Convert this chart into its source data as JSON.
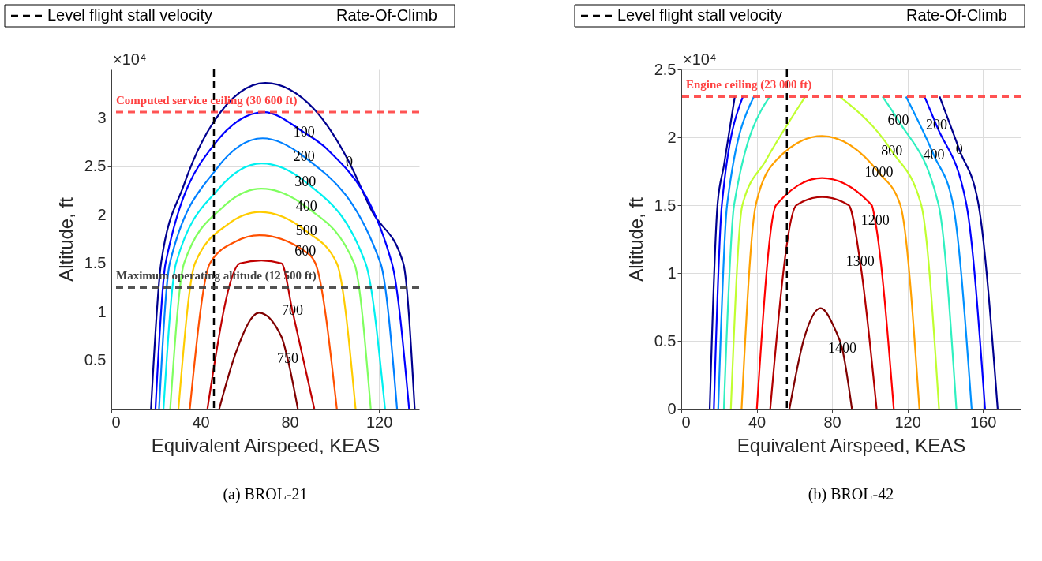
{
  "chart_data": [
    {
      "type": "line",
      "title": "(a) BROL-21",
      "xlabel": "Equivalent Airspeed, KEAS",
      "ylabel": "Altitude, ft",
      "xlim": [
        0,
        138
      ],
      "ylim": [
        0,
        3.5
      ],
      "xticks": [
        0,
        40,
        80,
        120
      ],
      "yticks": [
        0.5,
        1,
        1.5,
        2,
        2.5,
        3
      ],
      "grid": true,
      "legend": "top",
      "line_style": "solid",
      "marker": "none",
      "series": [
        {
          "color": "#00008f",
          "x": [
            17.8,
            22.3,
            32.4,
            45.9,
            69,
            90.9,
            106.7,
            116.8,
            130.9,
            136
          ],
          "values": [
            0,
            1.5,
            2.3,
            2.96,
            3.36,
            3.09,
            2.54,
            2.04,
            1.5,
            0
          ]
        },
        {
          "color": "#0000ff",
          "x": [
            19.8,
            24.3,
            45.9,
            68.4,
            86.4,
            97.1,
            125.8,
            133.5
          ],
          "values": [
            0,
            1.5,
            2.72,
            3.06,
            2.85,
            2.67,
            1.5,
            0
          ]
        },
        {
          "color": "#0080ff",
          "x": [
            21.4,
            26.2,
            47,
            67.8,
            86.4,
            120.7,
            128.1
          ],
          "values": [
            0,
            1.5,
            2.47,
            2.79,
            2.6,
            1.5,
            0
          ]
        },
        {
          "color": "#00f0f0",
          "x": [
            23.4,
            29,
            48.2,
            67.3,
            87,
            114,
            122.7
          ],
          "values": [
            0,
            1.5,
            2.27,
            2.53,
            2.34,
            1.5,
            0
          ]
        },
        {
          "color": "#80ff60",
          "x": [
            26.4,
            32.6,
            50,
            67.3,
            87.5,
            108.9,
            116.3
          ],
          "values": [
            0,
            1.5,
            2.08,
            2.27,
            2.08,
            1.5,
            0
          ]
        },
        {
          "color": "#ffcc00",
          "x": [
            30.1,
            37.5,
            52.1,
            66.7,
            87.5,
            101.1,
            109.5
          ],
          "values": [
            0,
            1.5,
            1.9,
            2.03,
            1.83,
            1.5,
            0
          ]
        },
        {
          "color": "#ff5000",
          "x": [
            35.2,
            44.2,
            55.3,
            66.4,
            87,
            91.5,
            101.1
          ],
          "values": [
            0,
            1.5,
            1.72,
            1.79,
            1.62,
            1.5,
            0
          ]
        },
        {
          "color": "#c00000",
          "x": [
            43.1,
            57.7,
            67.3,
            76.3,
            81.2,
            91
          ],
          "values": [
            0,
            1.5,
            1.53,
            1.5,
            1.01,
            0
          ]
        },
        {
          "color": "#800000",
          "x": [
            48.4,
            56,
            66.2,
            76.3,
            79.1,
            83.6
          ],
          "values": [
            0,
            0.59,
            0.99,
            0.74,
            0.51,
            0
          ]
        }
      ],
      "ref_lines": [
        {
          "axis": "x",
          "value": 46,
          "label": "Level flight stall velocity",
          "color": "#000000",
          "line_style": "dashed"
        },
        {
          "axis": "y",
          "value": 3.06,
          "label": "Computed service ceiling (30 600 ft)",
          "color": "#ff4040",
          "line_style": "dashed"
        },
        {
          "axis": "y",
          "value": 1.25,
          "label": "Maximum operating altitude (12 500 ft)",
          "color": "#404040",
          "line_style": "dashed"
        }
      ],
      "annotations": [
        "×10⁴",
        "Rate-Of-Climb",
        {
          "text": "0",
          "x": 106.7,
          "y": 2.54
        },
        {
          "text": "100",
          "x": 86.4,
          "y": 2.85
        },
        {
          "text": "200",
          "x": 86.4,
          "y": 2.6
        },
        {
          "text": "300",
          "x": 87,
          "y": 2.34
        },
        {
          "text": "400",
          "x": 87.5,
          "y": 2.08
        },
        {
          "text": "500",
          "x": 87.5,
          "y": 1.83
        },
        {
          "text": "600",
          "x": 87,
          "y": 1.62
        },
        {
          "text": "700",
          "x": 81.2,
          "y": 1.01
        },
        {
          "text": "750",
          "x": 79.1,
          "y": 0.51
        }
      ]
    },
    {
      "type": "line",
      "title": "(b) BROL-42",
      "xlabel": "Equivalent Airspeed, KEAS",
      "ylabel": "Altitude, ft",
      "xlim": [
        0,
        180
      ],
      "ylim": [
        0,
        2.5
      ],
      "xticks": [
        0,
        40,
        80,
        120,
        160
      ],
      "yticks": [
        0,
        0.5,
        1,
        1.5,
        2,
        2.5
      ],
      "grid": true,
      "legend": "top",
      "line_style": "solid",
      "marker": "none",
      "series": [
        {
          "color": "#00008f",
          "x": [
            15.1,
            19.2,
            22.6,
            28.4
          ],
          "values": [
            0,
            1.5,
            1.79,
            2.3
          ]
        },
        {
          "color": "#00008f",
          "x": [
            137,
            147.5,
            157.7,
            167.8
          ],
          "values": [
            2.3,
            1.907,
            1.5,
            0
          ]
        },
        {
          "color": "#0000ff",
          "x": [
            17.3,
            21.5,
            32.7
          ],
          "values": [
            0,
            1.5,
            2.3
          ]
        },
        {
          "color": "#0000ff",
          "x": [
            129,
            135.4,
            151.3,
            161.1
          ],
          "values": [
            2.3,
            2.086,
            1.5,
            0
          ]
        },
        {
          "color": "#0090ff",
          "x": [
            19.6,
            24.3,
            38.5
          ],
          "values": [
            0,
            1.5,
            2.3
          ]
        },
        {
          "color": "#0090ff",
          "x": [
            119.2,
            134,
            144.2,
            154
          ],
          "values": [
            2.3,
            1.867,
            1.5,
            0
          ]
        },
        {
          "color": "#30f0c0",
          "x": [
            22.6,
            28,
            46.9
          ],
          "values": [
            0,
            1.5,
            2.3
          ]
        },
        {
          "color": "#30f0c0",
          "x": [
            106.7,
            115.1,
            136.5,
            145.9
          ],
          "values": [
            2.3,
            2.124,
            1.5,
            0
          ]
        },
        {
          "color": "#c0ff30",
          "x": [
            26.3,
            32.4,
            44.9,
            65.8
          ],
          "values": [
            0,
            1.5,
            1.83,
            2.3
          ]
        },
        {
          "color": "#c0ff30",
          "x": [
            84,
            111.7,
            127.3,
            136.7
          ],
          "values": [
            2.3,
            1.898,
            1.5,
            0
          ]
        },
        {
          "color": "#ffa000",
          "x": [
            32,
            39.5,
            50.3,
            74.6,
            104.9,
            116.2,
            126.3
          ],
          "values": [
            0,
            1.5,
            1.83,
            2.01,
            1.738,
            1.5,
            0
          ]
        },
        {
          "color": "#ff0000",
          "x": [
            40.1,
            50.3,
            74.6,
            101,
            102.9,
            112.7
          ],
          "values": [
            0,
            1.5,
            1.7,
            1.5,
            1.381,
            0
          ]
        },
        {
          "color": "#b00000",
          "x": [
            47.2,
            61.1,
            74.6,
            88.8,
            94.9,
            103.6
          ],
          "values": [
            0,
            1.5,
            1.56,
            1.5,
            1.08,
            0
          ]
        },
        {
          "color": "#800000",
          "x": [
            57.4,
            65.1,
            73.9,
            81.4,
            85.4,
            90.5
          ],
          "values": [
            0,
            0.515,
            0.74,
            0.59,
            0.44,
            0
          ]
        }
      ],
      "ref_lines": [
        {
          "axis": "x",
          "value": 56,
          "label": "Level flight stall velocity",
          "color": "#000000",
          "line_style": "dashed"
        },
        {
          "axis": "y",
          "value": 2.3,
          "label": "Engine ceiling (23 000 ft)",
          "color": "#ff4040",
          "line_style": "dashed"
        }
      ],
      "annotations": [
        "×10⁴",
        "Rate-Of-Climb",
        {
          "text": "0",
          "x": 147.5,
          "y": 1.907
        },
        {
          "text": "200",
          "x": 135.4,
          "y": 2.086
        },
        {
          "text": "400",
          "x": 134,
          "y": 1.867
        },
        {
          "text": "600",
          "x": 115.1,
          "y": 2.124
        },
        {
          "text": "800",
          "x": 111.7,
          "y": 1.898
        },
        {
          "text": "1000",
          "x": 104.9,
          "y": 1.738
        },
        {
          "text": "1200",
          "x": 102.9,
          "y": 1.381
        },
        {
          "text": "1300",
          "x": 94.9,
          "y": 1.08
        },
        {
          "text": "1400",
          "x": 85.4,
          "y": 0.44
        }
      ]
    }
  ]
}
